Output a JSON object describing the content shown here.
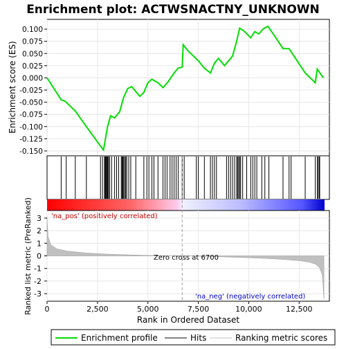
{
  "chart_data": {
    "type": "line",
    "title": "Enrichment plot: ACTWSNACTNY_UNKNOWN",
    "top_panel": {
      "ylabel": "Enrichment score (ES)",
      "ylim": [
        -0.16,
        0.12
      ],
      "yticks": [
        0.1,
        0.075,
        0.05,
        0.025,
        0.0,
        -0.025,
        -0.05,
        -0.075,
        -0.1,
        -0.125,
        -0.15
      ],
      "ytick_labels": [
        "0.100",
        "0.075",
        "0.050",
        "0.025",
        "0.000",
        "-0.025",
        "-0.050",
        "-0.075",
        "-0.100",
        "-0.125",
        "-0.150"
      ],
      "series": [
        {
          "name": "Enrichment profile",
          "color": "#00dd00",
          "x": [
            0,
            700,
            900,
            1400,
            1950,
            2650,
            2800,
            3000,
            3150,
            3350,
            3600,
            3800,
            4000,
            4200,
            4600,
            4800,
            5000,
            5200,
            5500,
            5750,
            6000,
            6300,
            6500,
            6700,
            6750,
            7000,
            7500,
            7800,
            8100,
            8300,
            8500,
            8800,
            9000,
            9200,
            9400,
            9550,
            9800,
            10100,
            10300,
            10500,
            10700,
            10950,
            11300,
            11700,
            12000,
            12400,
            12800,
            13300,
            13400,
            13700
          ],
          "y": [
            0.0,
            -0.045,
            -0.048,
            -0.068,
            -0.1,
            -0.14,
            -0.148,
            -0.1,
            -0.078,
            -0.082,
            -0.07,
            -0.04,
            -0.022,
            -0.018,
            -0.038,
            -0.03,
            -0.01,
            -0.003,
            -0.01,
            -0.02,
            -0.008,
            0.01,
            0.02,
            0.022,
            0.068,
            0.055,
            0.035,
            0.02,
            0.01,
            0.03,
            0.04,
            0.025,
            0.035,
            0.045,
            0.075,
            0.102,
            0.095,
            0.082,
            0.095,
            0.09,
            0.1,
            0.106,
            0.085,
            0.06,
            0.06,
            0.035,
            0.01,
            -0.01,
            0.018,
            0.0
          ]
        }
      ]
    },
    "hits_panel": {
      "hit_positions": [
        700,
        950,
        1400,
        1950,
        2650,
        2750,
        2850,
        2880,
        2910,
        2950,
        2980,
        3010,
        3050,
        3100,
        3200,
        3350,
        3450,
        3550,
        3680,
        3720,
        3760,
        3800,
        3850,
        3900,
        3950,
        4050,
        4150,
        4400,
        4800,
        4950,
        5050,
        5200,
        5300,
        5500,
        5750,
        5850,
        5950,
        6100,
        6200,
        6300,
        6400,
        6500,
        6700,
        6800,
        7400,
        7500,
        7800,
        8100,
        8200,
        8300,
        8400,
        8900,
        9000,
        9100,
        9200,
        9300,
        9400,
        9450,
        9500,
        9550,
        9600,
        9700,
        9900,
        10100,
        10200,
        10300,
        10400,
        10650,
        10800,
        11000,
        11700,
        12000,
        12100,
        12800,
        13300,
        13400,
        13450,
        13500,
        13520
      ]
    },
    "ranked_panel": {
      "ylabel": "Ranked list metric (PreRanked)",
      "xlabel": "Rank in Ordered Dataset",
      "ylim": [
        -3.6,
        3.6
      ],
      "yticks": [
        3,
        2,
        1,
        0,
        -1,
        -2,
        -3
      ],
      "ytick_labels": [
        "3",
        "2",
        "1",
        "0",
        "-1",
        "-2",
        "-3"
      ],
      "xlim": [
        0,
        14000
      ],
      "xticks": [
        0,
        2500,
        5000,
        7500,
        10000,
        12500
      ],
      "xtick_labels": [
        "0",
        "2,500",
        "5,000",
        "7,500",
        "10,000",
        "12,500"
      ],
      "zero_cross": 6700,
      "zero_cross_label": "Zero cross at 6700",
      "pos_label": "'na_pos' (positively correlated)",
      "neg_label": "'na_neg' (negatively correlated)",
      "metric_x": [
        0,
        50,
        200,
        500,
        1000,
        2000,
        3000,
        4000,
        5000,
        6000,
        6700,
        7500,
        8500,
        9500,
        10500,
        11500,
        12500,
        13000,
        13300,
        13500,
        13650,
        13730
      ],
      "metric_y": [
        3.0,
        1.5,
        0.85,
        0.55,
        0.38,
        0.22,
        0.14,
        0.08,
        0.04,
        0.015,
        0.0,
        -0.03,
        -0.07,
        -0.12,
        -0.18,
        -0.26,
        -0.38,
        -0.5,
        -0.65,
        -0.9,
        -1.5,
        -3.4
      ],
      "metric_fill": "#c0c0c0"
    },
    "legend": {
      "placement": "bottom",
      "entries": [
        {
          "label": "Enrichment profile",
          "color": "#00dd00"
        },
        {
          "label": "Hits",
          "color": "#000000"
        },
        {
          "label": "Ranking metric scores",
          "color": "#c0c0c0"
        }
      ]
    },
    "grid": true
  }
}
